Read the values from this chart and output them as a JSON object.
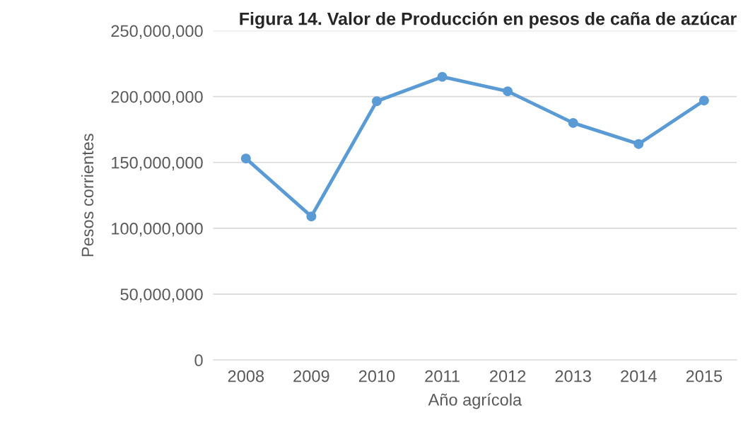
{
  "chart_data": {
    "type": "line",
    "title": "Figura 14. Valor de Producción en pesos de caña de azúcar",
    "xlabel": "Año agrícola",
    "ylabel": "Pesos corrientes",
    "categories": [
      "2008",
      "2009",
      "2010",
      "2011",
      "2012",
      "2013",
      "2014",
      "2015"
    ],
    "series": [
      {
        "color": "#5b9bd5",
        "values": [
          153000000,
          109000000,
          196500000,
          215000000,
          204000000,
          180000000,
          164000000,
          197000000
        ]
      }
    ],
    "ylim": [
      0,
      250000000
    ],
    "yticks": [
      {
        "value": 0,
        "label": "0"
      },
      {
        "value": 50000000,
        "label": "50,000,000"
      },
      {
        "value": 100000000,
        "label": "100,000,000"
      },
      {
        "value": 150000000,
        "label": "150,000,000"
      },
      {
        "value": 200000000,
        "label": "200,000,000"
      },
      {
        "value": 250000000,
        "label": "250,000,000"
      }
    ],
    "grid": "y",
    "legend": false,
    "marker": "circle",
    "line_style": "solid"
  }
}
